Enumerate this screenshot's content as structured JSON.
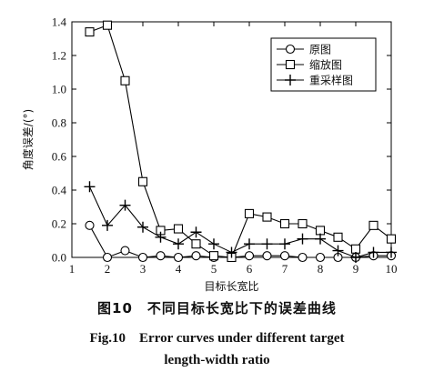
{
  "chart_data": {
    "type": "line",
    "xlabel": "目标长宽比",
    "ylabel": "角度误差/(°)",
    "xlim": [
      1,
      10
    ],
    "ylim": [
      0,
      1.4
    ],
    "xticks": [
      "1",
      "2",
      "3",
      "4",
      "5",
      "6",
      "7",
      "8",
      "9",
      "10"
    ],
    "yticks": [
      "0.0",
      "0.2",
      "0.4",
      "0.6",
      "0.8",
      "1.0",
      "1.2",
      "1.4"
    ],
    "legend_position": "top-right",
    "series": [
      {
        "name": "原图",
        "marker": "circle",
        "x": [
          1.5,
          2,
          2.5,
          3,
          3.5,
          4,
          4.5,
          5,
          5.5,
          6,
          6.5,
          7,
          7.5,
          8,
          8.5,
          9,
          9.5,
          10
        ],
        "y": [
          0.19,
          0.0,
          0.04,
          0.0,
          0.01,
          0.0,
          0.01,
          0.0,
          0.0,
          0.01,
          0.01,
          0.01,
          0.0,
          0.0,
          0.0,
          0.0,
          0.01,
          0.01
        ]
      },
      {
        "name": "缩放图",
        "marker": "square",
        "x": [
          1.5,
          2,
          2.5,
          3,
          3.5,
          4,
          4.5,
          5,
          5.5,
          6,
          6.5,
          7,
          7.5,
          8,
          8.5,
          9,
          9.5,
          10
        ],
        "y": [
          1.34,
          1.38,
          1.05,
          0.45,
          0.16,
          0.17,
          0.08,
          0.01,
          0.0,
          0.26,
          0.24,
          0.2,
          0.2,
          0.16,
          0.12,
          0.05,
          0.19,
          0.11
        ]
      },
      {
        "name": "重采样图",
        "marker": "plus",
        "x": [
          1.5,
          2,
          2.5,
          3,
          3.5,
          4,
          4.5,
          5,
          5.5,
          6,
          6.5,
          7,
          7.5,
          8,
          8.5,
          9,
          9.5,
          10
        ],
        "y": [
          0.42,
          0.19,
          0.31,
          0.18,
          0.12,
          0.08,
          0.15,
          0.08,
          0.03,
          0.08,
          0.08,
          0.08,
          0.11,
          0.11,
          0.04,
          0.0,
          0.03,
          0.03
        ]
      }
    ]
  },
  "caption": {
    "zh": "图10　不同目标长宽比下的误差曲线",
    "en_line1": "Fig.10　Error curves under different target",
    "en_line2": "length-width ratio"
  }
}
